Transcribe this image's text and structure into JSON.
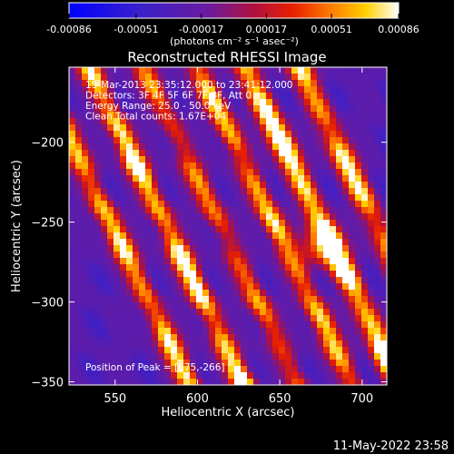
{
  "chart_data": {
    "type": "heatmap",
    "title": "Reconstructed RHESSI Image",
    "xlabel": "Heliocentric X (arcsec)",
    "ylabel": "Heliocentric Y (arcsec)",
    "xlim": [
      522,
      715
    ],
    "ylim": [
      -352,
      -153
    ],
    "x_ticks": [
      550,
      600,
      650,
      700
    ],
    "y_ticks": [
      -200,
      -250,
      -300,
      -350
    ],
    "colorbar": {
      "min": -0.00086,
      "max": 0.00086,
      "tick_values": [
        -0.00086,
        -0.00051,
        -0.00017,
        0.00017,
        0.00051,
        0.00086
      ],
      "tick_labels": [
        "-0.00086",
        "-0.00051",
        "-0.00017",
        "0.00017",
        "0.00051",
        "0.00086"
      ],
      "unit_label": "(photons cm⁻² s⁻¹ asec⁻²)"
    },
    "annotations": [
      "15-Mar-2013 23:35:12.000 to 23:41:12.000",
      "Detectors: 3F 4F 5F 6F 7F 8F, Att 0",
      "Energy Range: 25.0 - 50.0 keV",
      "Clean     Total counts: 1.67E+04"
    ],
    "peak_label": "Position of Peak = [675,-266]",
    "peak": [
      675,
      -266
    ],
    "colormap": "RHESSI blue-purple-red-yellow-white",
    "stripe_slope": -2.1,
    "stripe_period": 33,
    "stripes": [
      {
        "x_at_y_mid": 548,
        "amplitude": 0.75
      },
      {
        "x_at_y_mid": 581,
        "amplitude": 0.85
      },
      {
        "x_at_y_mid": 614,
        "amplitude": 0.55
      },
      {
        "x_at_y_mid": 647,
        "amplitude": 0.7
      },
      {
        "x_at_y_mid": 676,
        "amplitude": 1.0
      },
      {
        "x_at_y_mid": 709,
        "amplitude": 0.8
      }
    ]
  },
  "footer_timestamp": "11-May-2022 23:58"
}
